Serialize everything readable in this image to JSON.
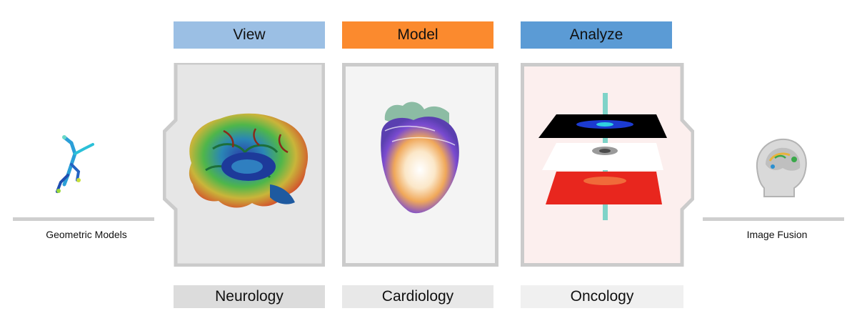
{
  "stages": [
    {
      "title": "View",
      "color": "#9bbfe4",
      "domain": "Neurology",
      "domain_bg": "#dcdcdc",
      "panel_bg": "#e6e6e6"
    },
    {
      "title": "Model",
      "color": "#fb8a2e",
      "domain": "Cardiology",
      "domain_bg": "#e8e8e8",
      "panel_bg": "#f4f4f4"
    },
    {
      "title": "Analyze",
      "color": "#5b9bd5",
      "domain": "Oncology",
      "domain_bg": "#f0f0f0",
      "panel_bg": "#fcefee"
    }
  ],
  "left_feature": {
    "label": "Geometric Models",
    "icon": "vessel-tree-icon"
  },
  "right_feature": {
    "label": "Image Fusion",
    "icon": "head-mri-icon"
  },
  "colors": {
    "frame": "#cbcbcb",
    "shelf": "#cfcfcf"
  }
}
